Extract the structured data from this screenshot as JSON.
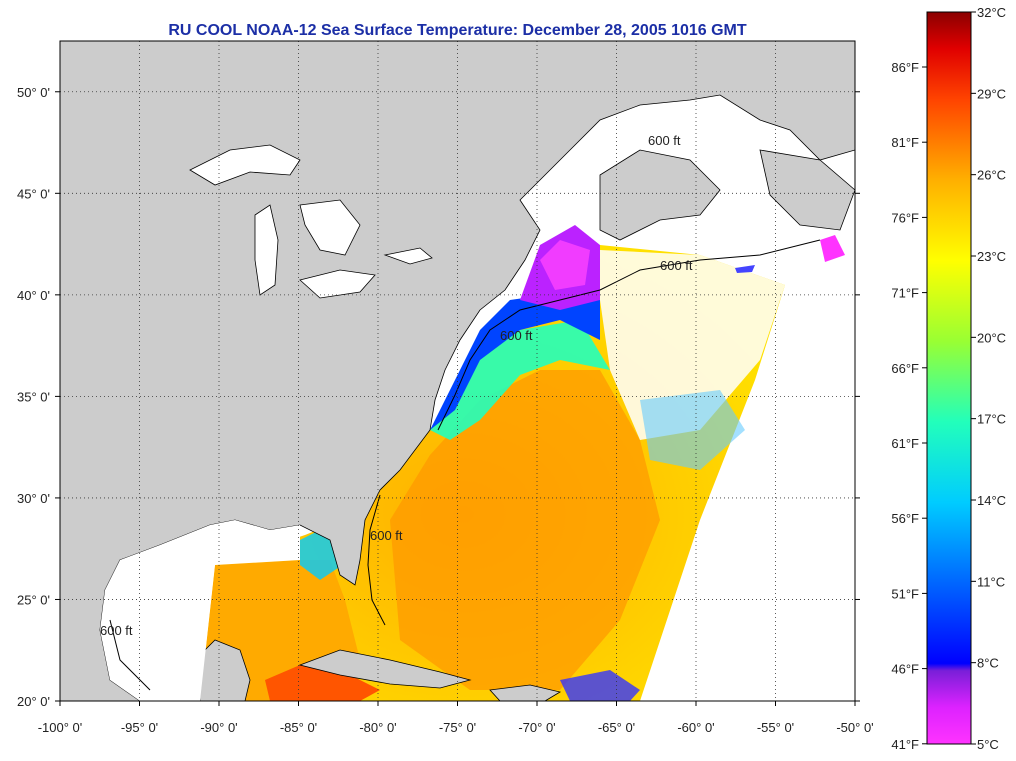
{
  "title": "RU COOL  NOAA-12  Sea Surface Temperature:  December 28, 2005 1016 GMT",
  "map": {
    "lon_range": [
      -100,
      -50
    ],
    "lat_range": [
      20,
      52.5
    ],
    "lon_ticks": [
      "-100° 0'",
      "-95° 0'",
      "-90° 0'",
      "-85° 0'",
      "-80° 0'",
      "-75° 0'",
      "-70° 0'",
      "-65° 0'",
      "-60° 0'",
      "-55° 0'",
      "-50° 0'"
    ],
    "lat_ticks": [
      "50° 0'",
      "45° 0'",
      "40° 0'",
      "35° 0'",
      "30° 0'",
      "25° 0'",
      "20° 0'"
    ],
    "grid": true,
    "land_color": "#cccccc",
    "bathymetry_label": "600 ft"
  },
  "colorbar": {
    "celsius": [
      "32°C",
      "29°C",
      "26°C",
      "23°C",
      "20°C",
      "17°C",
      "14°C",
      "11°C",
      "8°C",
      "5°C"
    ],
    "fahrenheit": [
      "86°F",
      "81°F",
      "76°F",
      "71°F",
      "66°F",
      "61°F",
      "56°F",
      "51°F",
      "46°F",
      "41°F"
    ],
    "colors": [
      "#ff33ff",
      "#cc22ff",
      "#7a1fd8",
      "#0000ff",
      "#0077ff",
      "#00ccff",
      "#22ffbb",
      "#99ff33",
      "#ffff00",
      "#ffb000",
      "#ff6600",
      "#ff0000",
      "#8b0000"
    ]
  }
}
